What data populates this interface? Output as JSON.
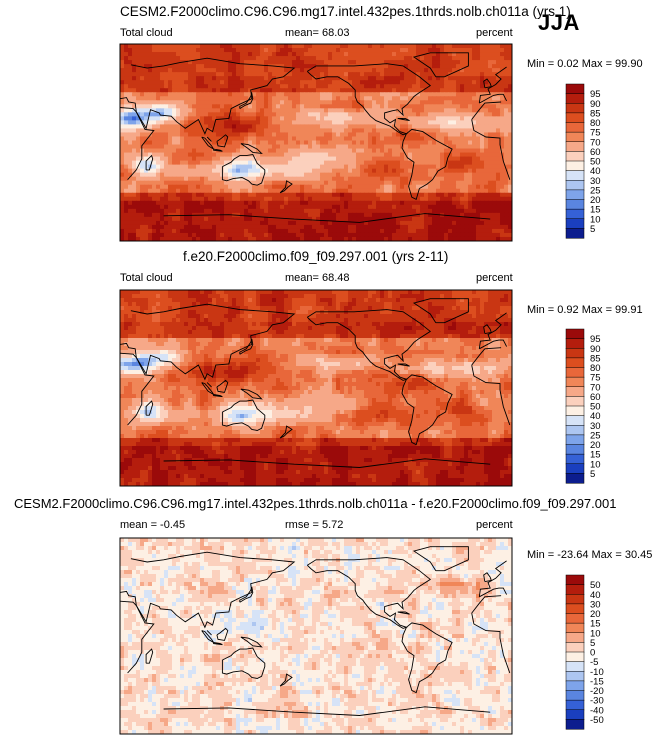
{
  "season": "JJA",
  "panels": [
    {
      "title": "CESM2.F2000climo.C96.C96.mg17.intel.432pes.1thrds.nolb.ch011a (yrs 1)",
      "left_label": "Total cloud",
      "center_label": "mean=  68.03",
      "right_label": "percent",
      "minmax": "Min =  0.02 Max =  99.90",
      "colorbar": {
        "labels": [
          "95",
          "90",
          "85",
          "80",
          "75",
          "70",
          "60",
          "50",
          "40",
          "30",
          "25",
          "20",
          "15",
          "10",
          "5"
        ],
        "colors": [
          "#9b0a0a",
          "#b41d0d",
          "#c93613",
          "#dc4e1f",
          "#e8673a",
          "#f08658",
          "#f6a888",
          "#fbd0bd",
          "#fdf0e4",
          "#d6e3f7",
          "#adc6f1",
          "#7ea4ea",
          "#5a85e0",
          "#3561d6",
          "#1a3fbf",
          "#0c1d8e"
        ]
      },
      "field": "base"
    },
    {
      "title": "f.e20.F2000climo.f09_f09.297.001 (yrs 2-11)",
      "left_label": "Total cloud",
      "center_label": "mean=  68.48",
      "right_label": "percent",
      "minmax": "Min =  0.92 Max =  99.91",
      "colorbar": {
        "labels": [
          "95",
          "90",
          "85",
          "80",
          "75",
          "70",
          "60",
          "50",
          "40",
          "30",
          "25",
          "20",
          "15",
          "10",
          "5"
        ],
        "colors": [
          "#9b0a0a",
          "#b41d0d",
          "#c93613",
          "#dc4e1f",
          "#e8673a",
          "#f08658",
          "#f6a888",
          "#fbd0bd",
          "#fdf0e4",
          "#d6e3f7",
          "#adc6f1",
          "#7ea4ea",
          "#5a85e0",
          "#3561d6",
          "#1a3fbf",
          "#0c1d8e"
        ]
      },
      "field": "base"
    },
    {
      "title": "CESM2.F2000climo.C96.C96.mg17.intel.432pes.1thrds.nolb.ch011a - f.e20.F2000climo.f09_f09.297.001",
      "left_label": "mean =  -0.45",
      "center_label": "rmse =  5.72",
      "right_label": "percent",
      "minmax": "Min = -23.64 Max =  30.45",
      "colorbar": {
        "labels": [
          "50",
          "40",
          "30",
          "20",
          "15",
          "10",
          "5",
          "0",
          "-5",
          "-10",
          "-15",
          "-20",
          "-30",
          "-40",
          "-50"
        ],
        "colors": [
          "#9b0a0a",
          "#b41d0d",
          "#c93613",
          "#dc4e1f",
          "#e8673a",
          "#f08658",
          "#f6a888",
          "#fbd0bd",
          "#fdf0e4",
          "#d6e3f7",
          "#adc6f1",
          "#7ea4ea",
          "#5a85e0",
          "#3561d6",
          "#1a3fbf",
          "#0c1d8e"
        ]
      },
      "field": "diff"
    }
  ],
  "chart_data": {
    "type": "heatmap",
    "title": "Total cloud, JJA",
    "units": "percent",
    "panels": [
      {
        "name": "CESM2.F2000climo.C96.C96.mg17.intel.432pes.1thrds.nolb.ch011a (yrs 1)",
        "mean": 68.03,
        "min": 0.02,
        "max": 99.9,
        "levels": [
          5,
          10,
          15,
          20,
          25,
          30,
          40,
          50,
          60,
          70,
          75,
          80,
          85,
          90,
          95
        ]
      },
      {
        "name": "f.e20.F2000climo.f09_f09.297.001 (yrs 2-11)",
        "mean": 68.48,
        "min": 0.92,
        "max": 99.91,
        "levels": [
          5,
          10,
          15,
          20,
          25,
          30,
          40,
          50,
          60,
          70,
          75,
          80,
          85,
          90,
          95
        ]
      },
      {
        "name": "difference",
        "mean": -0.45,
        "rmse": 5.72,
        "min": -23.64,
        "max": 30.45,
        "levels": [
          -50,
          -40,
          -30,
          -20,
          -15,
          -10,
          -5,
          0,
          5,
          10,
          15,
          20,
          30,
          40,
          50
        ]
      }
    ]
  }
}
